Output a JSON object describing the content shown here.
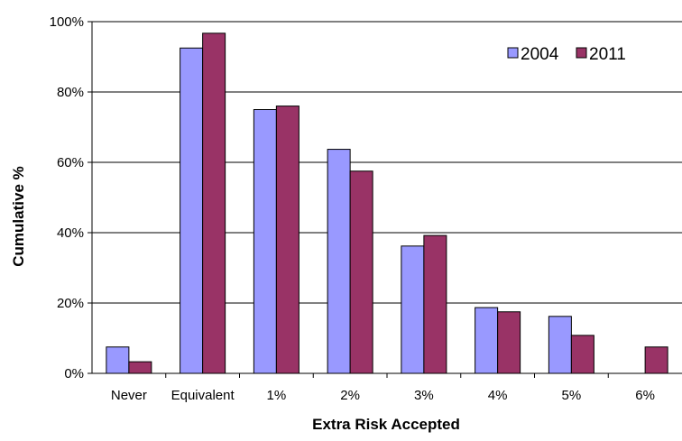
{
  "chart_data": {
    "type": "bar",
    "title": "",
    "xlabel": "Extra Risk Accepted",
    "ylabel": "Cumulative %",
    "categories": [
      "Never",
      "Equivalent",
      "1%",
      "2%",
      "3%",
      "4%",
      "5%",
      "6%"
    ],
    "series": [
      {
        "name": "2004",
        "values": [
          7.5,
          92.5,
          75,
          63.7,
          36.2,
          18.7,
          16.2,
          0
        ],
        "color": "#9999ff"
      },
      {
        "name": "2011",
        "values": [
          3.3,
          96.7,
          76,
          57.5,
          39.2,
          17.5,
          10.8,
          7.5
        ],
        "color": "#993366"
      }
    ],
    "ylim": [
      0,
      100
    ],
    "yticks": [
      "0%",
      "20%",
      "40%",
      "60%",
      "80%",
      "100%"
    ],
    "grid": true,
    "legend_position": "top-right"
  }
}
